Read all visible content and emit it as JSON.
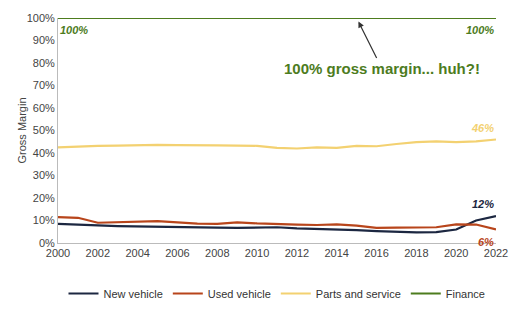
{
  "chart_data": {
    "type": "line",
    "y_label": "Gross Margin",
    "x": [
      2000,
      2001,
      2002,
      2003,
      2004,
      2005,
      2006,
      2007,
      2008,
      2009,
      2010,
      2011,
      2012,
      2013,
      2014,
      2015,
      2016,
      2017,
      2018,
      2019,
      2020,
      2021,
      2022
    ],
    "xlim": [
      2000,
      2022
    ],
    "xticks": [
      2000,
      2002,
      2004,
      2006,
      2008,
      2010,
      2012,
      2014,
      2016,
      2018,
      2020,
      2022
    ],
    "ylim": [
      0,
      100
    ],
    "yticks": [
      {
        "value": 0,
        "label": "0%"
      },
      {
        "value": 10,
        "label": "10%"
      },
      {
        "value": 20,
        "label": "20%"
      },
      {
        "value": 30,
        "label": "30%"
      },
      {
        "value": 40,
        "label": "40%"
      },
      {
        "value": 50,
        "label": "50%"
      },
      {
        "value": 60,
        "label": "60%"
      },
      {
        "value": 70,
        "label": "70%"
      },
      {
        "value": 80,
        "label": "80%"
      },
      {
        "value": 90,
        "label": "90%"
      },
      {
        "value": 100,
        "label": "100%"
      }
    ],
    "grid": false,
    "legend": "bottom",
    "series": [
      {
        "name": "New vehicle",
        "color": "#1c2741",
        "values": [
          8.5,
          8,
          7.8,
          7.5,
          7.3,
          7.2,
          7.2,
          7,
          6.8,
          6.7,
          6.7,
          7,
          6.5,
          6.3,
          6,
          5.7,
          5.3,
          5,
          4.7,
          4.8,
          6,
          10,
          12
        ]
      },
      {
        "name": "Used vehicle",
        "color": "#b8451b",
        "values": [
          11.5,
          11.2,
          9,
          9.3,
          9.4,
          9.7,
          9.2,
          8.6,
          8.5,
          9.2,
          8.7,
          8.3,
          8.2,
          8,
          8.3,
          7.7,
          6.7,
          6.8,
          7,
          7,
          8.3,
          8.2,
          6
        ]
      },
      {
        "name": "Parts and service",
        "color": "#f3d171",
        "values": [
          42.5,
          43,
          43.2,
          43.3,
          43.5,
          43.6,
          43.5,
          43.3,
          43.4,
          43.3,
          43.2,
          42.3,
          42,
          42.5,
          42.3,
          43.2,
          43,
          44,
          44.8,
          45.2,
          44.8,
          45.2,
          46
        ]
      },
      {
        "name": "Finance",
        "color": "#4d7c1e",
        "values": [
          100,
          100,
          100,
          100,
          100,
          100,
          100,
          100,
          100,
          100,
          100,
          100,
          100,
          100,
          100,
          100,
          100,
          100,
          100,
          100,
          100,
          100,
          100
        ]
      }
    ],
    "annotations": [
      {
        "text": "100%",
        "series": "Finance",
        "x": 2000,
        "y": 100
      },
      {
        "text": "100%",
        "series": "Finance",
        "x": 2022,
        "y": 100
      },
      {
        "text": "46%",
        "series": "Parts and service",
        "x": 2022,
        "y": 46
      },
      {
        "text": "12%",
        "series": "New vehicle",
        "x": 2022,
        "y": 12
      },
      {
        "text": "6%",
        "series": "Used vehicle",
        "x": 2022,
        "y": 6
      },
      {
        "text": "100% gross margin... huh?!",
        "color": "#4d7c1e",
        "x": 2015,
        "y": 100
      }
    ]
  }
}
